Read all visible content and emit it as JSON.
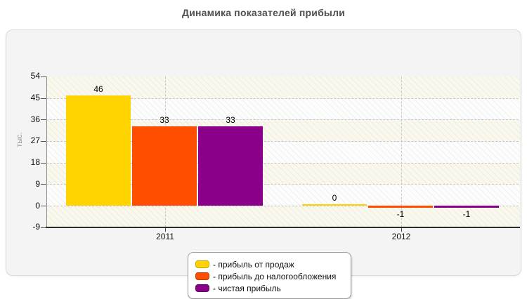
{
  "title": "Динамика показателей прибыли",
  "chart_data": {
    "type": "bar",
    "title": "Динамика показателей прибыли",
    "categories": [
      "2011",
      "2012"
    ],
    "series": [
      {
        "name": "- прибыль от продаж",
        "color": "#ffd400",
        "border_color": "#cfa400",
        "values": [
          46,
          0
        ]
      },
      {
        "name": "- прибыль до налогообложения",
        "color": "#ff4e00",
        "border_color": "#c63600",
        "values": [
          33,
          -1
        ]
      },
      {
        "name": "- чистая прибыль",
        "color": "#8b008b",
        "border_color": "#5c005c",
        "values": [
          33,
          -1
        ]
      }
    ],
    "ylabel": "тыс.",
    "yticks": [
      54,
      45,
      36,
      27,
      18,
      9,
      0,
      -9
    ],
    "ylim": [
      -9,
      54
    ],
    "grid": "dashed",
    "legend_position": "bottom-center",
    "data_labels": [
      "46",
      "33",
      "33",
      "0",
      "-1",
      "-1"
    ]
  },
  "style_colors": {
    "panel_background": "#f4f4f4",
    "title_color": "#4f4f4f",
    "axis_color": "#2b2b2b",
    "grid_color": "#c6c6c6"
  }
}
